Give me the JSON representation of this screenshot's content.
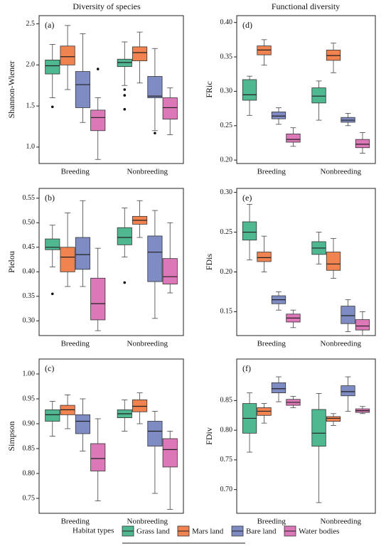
{
  "headers": [
    "Diversity of species",
    "Functional diversity"
  ],
  "legend": {
    "title": "Habitat types",
    "items": [
      {
        "name": "Grass land",
        "color": "#4fb891"
      },
      {
        "name": "Mars land",
        "color": "#f0834f"
      },
      {
        "name": "Bare land",
        "color": "#7f8cc4"
      },
      {
        "name": "Water bodies",
        "color": "#dc77b8"
      }
    ]
  },
  "chart_data": [
    {
      "type": "box",
      "label": "(a)",
      "ylabel": "Shannon-Wiener",
      "categories": [
        "Breeding",
        "Nonbreeding"
      ],
      "ylim": [
        0.8,
        2.6
      ],
      "yticks": [
        {
          "value": 1.0,
          "label": "1.0"
        },
        1.5,
        {
          "value": 2.0,
          "label": "2.0"
        },
        2.5
      ],
      "series": [
        {
          "values": [
            {
              "low": 1.6,
              "q1": 1.89,
              "median": 1.99,
              "q3": 2.06,
              "high": 2.25,
              "outliers": [
                1.49
              ]
            },
            {
              "low": 1.75,
              "q1": 1.98,
              "median": 2.03,
              "q3": 2.07,
              "high": 2.28,
              "outliers": [
                1.7,
                1.63,
                1.46
              ]
            }
          ]
        },
        {
          "values": [
            {
              "low": 1.7,
              "q1": 2.0,
              "median": 2.1,
              "q3": 2.23,
              "high": 2.48,
              "outliers": []
            },
            {
              "low": 1.78,
              "q1": 2.05,
              "median": 2.15,
              "q3": 2.22,
              "high": 2.4,
              "outliers": []
            }
          ]
        },
        {
          "values": [
            {
              "low": 1.3,
              "q1": 1.48,
              "median": 1.76,
              "q3": 1.92,
              "high": 2.38,
              "outliers": []
            },
            {
              "low": 1.2,
              "q1": 1.6,
              "median": 1.62,
              "q3": 1.86,
              "high": 2.2,
              "outliers": [
                1.17
              ]
            }
          ]
        },
        {
          "values": [
            {
              "low": 0.85,
              "q1": 1.2,
              "median": 1.36,
              "q3": 1.45,
              "high": 1.6,
              "outliers": [
                1.95
              ]
            },
            {
              "low": 1.15,
              "q1": 1.34,
              "median": 1.48,
              "q3": 1.6,
              "high": 1.72,
              "outliers": []
            }
          ]
        }
      ]
    },
    {
      "type": "box",
      "label": "(d)",
      "ylabel": "FRic",
      "categories": [
        "Breeding",
        "Nonbreeding"
      ],
      "ylim": [
        0.195,
        0.41
      ],
      "yticks": [
        {
          "value": 0.2,
          "label": "0.20"
        },
        0.25,
        {
          "value": 0.3,
          "label": "0.30"
        },
        0.35,
        {
          "value": 0.4,
          "label": "0.40"
        }
      ],
      "series": [
        {
          "values": [
            {
              "low": 0.265,
              "q1": 0.287,
              "median": 0.295,
              "q3": 0.317,
              "high": 0.322,
              "outliers": []
            },
            {
              "low": 0.258,
              "q1": 0.283,
              "median": 0.293,
              "q3": 0.305,
              "high": 0.315,
              "outliers": []
            }
          ]
        },
        {
          "values": [
            {
              "low": 0.338,
              "q1": 0.353,
              "median": 0.36,
              "q3": 0.366,
              "high": 0.375,
              "outliers": []
            },
            {
              "low": 0.327,
              "q1": 0.345,
              "median": 0.352,
              "q3": 0.36,
              "high": 0.37,
              "outliers": []
            }
          ]
        },
        {
          "values": [
            {
              "low": 0.252,
              "q1": 0.26,
              "median": 0.264,
              "q3": 0.27,
              "high": 0.276,
              "outliers": []
            },
            {
              "low": 0.25,
              "q1": 0.255,
              "median": 0.258,
              "q3": 0.262,
              "high": 0.268,
              "outliers": []
            }
          ]
        },
        {
          "values": [
            {
              "low": 0.22,
              "q1": 0.226,
              "median": 0.23,
              "q3": 0.238,
              "high": 0.247,
              "outliers": []
            },
            {
              "low": 0.21,
              "q1": 0.218,
              "median": 0.223,
              "q3": 0.23,
              "high": 0.24,
              "outliers": []
            }
          ]
        }
      ]
    },
    {
      "type": "box",
      "label": "(b)",
      "ylabel": "Pielou",
      "categories": [
        "Breeding",
        "Nonbreeding"
      ],
      "ylim": [
        0.27,
        0.57
      ],
      "yticks": [
        {
          "value": 0.3,
          "label": "0.30"
        },
        0.35,
        {
          "value": 0.4,
          "label": "0.40"
        },
        0.45,
        {
          "value": 0.5,
          "label": "0.50"
        },
        0.55
      ],
      "series": [
        {
          "values": [
            {
              "low": 0.41,
              "q1": 0.445,
              "median": 0.45,
              "q3": 0.467,
              "high": 0.495,
              "outliers": [
                0.355
              ]
            },
            {
              "low": 0.43,
              "q1": 0.455,
              "median": 0.47,
              "q3": 0.49,
              "high": 0.53,
              "outliers": [
                0.378
              ]
            }
          ]
        },
        {
          "values": [
            {
              "low": 0.37,
              "q1": 0.4,
              "median": 0.43,
              "q3": 0.45,
              "high": 0.52,
              "outliers": []
            },
            {
              "low": 0.47,
              "q1": 0.497,
              "median": 0.505,
              "q3": 0.513,
              "high": 0.545,
              "outliers": []
            }
          ]
        },
        {
          "values": [
            {
              "low": 0.37,
              "q1": 0.405,
              "median": 0.435,
              "q3": 0.47,
              "high": 0.545,
              "outliers": []
            },
            {
              "low": 0.305,
              "q1": 0.38,
              "median": 0.44,
              "q3": 0.473,
              "high": 0.525,
              "outliers": []
            }
          ]
        },
        {
          "values": [
            {
              "low": 0.28,
              "q1": 0.302,
              "median": 0.335,
              "q3": 0.387,
              "high": 0.448,
              "outliers": []
            },
            {
              "low": 0.357,
              "q1": 0.375,
              "median": 0.39,
              "q3": 0.427,
              "high": 0.5,
              "outliers": []
            }
          ]
        }
      ]
    },
    {
      "type": "box",
      "label": "(e)",
      "ylabel": "FDis",
      "categories": [
        "Breeding",
        "Nonbreeding"
      ],
      "ylim": [
        0.12,
        0.305
      ],
      "yticks": [
        0.15,
        {
          "value": 0.2,
          "label": "0.20"
        },
        0.25,
        {
          "value": 0.3,
          "label": "0.30"
        }
      ],
      "series": [
        {
          "values": [
            {
              "low": 0.215,
              "q1": 0.24,
              "median": 0.25,
              "q3": 0.263,
              "high": 0.285,
              "outliers": []
            },
            {
              "low": 0.21,
              "q1": 0.222,
              "median": 0.23,
              "q3": 0.238,
              "high": 0.25,
              "outliers": []
            }
          ]
        },
        {
          "values": [
            {
              "low": 0.2,
              "q1": 0.213,
              "median": 0.218,
              "q3": 0.225,
              "high": 0.245,
              "outliers": []
            },
            {
              "low": 0.192,
              "q1": 0.202,
              "median": 0.21,
              "q3": 0.225,
              "high": 0.242,
              "outliers": []
            }
          ]
        },
        {
          "values": [
            {
              "low": 0.152,
              "q1": 0.16,
              "median": 0.165,
              "q3": 0.17,
              "high": 0.175,
              "outliers": []
            },
            {
              "low": 0.125,
              "q1": 0.135,
              "median": 0.145,
              "q3": 0.157,
              "high": 0.165,
              "outliers": []
            }
          ]
        },
        {
          "values": [
            {
              "low": 0.13,
              "q1": 0.137,
              "median": 0.142,
              "q3": 0.147,
              "high": 0.152,
              "outliers": []
            },
            {
              "low": 0.12,
              "q1": 0.127,
              "median": 0.132,
              "q3": 0.14,
              "high": 0.15,
              "outliers": []
            }
          ]
        }
      ]
    },
    {
      "type": "box",
      "label": "(c)",
      "ylabel": "Simpson",
      "categories": [
        "Breeding",
        "Nonbreeding"
      ],
      "ylim": [
        0.72,
        1.03
      ],
      "yticks": [
        0.75,
        {
          "value": 0.8,
          "label": "0.80"
        },
        0.85,
        {
          "value": 0.9,
          "label": "0.90"
        },
        0.95,
        {
          "value": 1.0,
          "label": "1.00"
        }
      ],
      "series": [
        {
          "values": [
            {
              "low": 0.875,
              "q1": 0.905,
              "median": 0.918,
              "q3": 0.928,
              "high": 0.945,
              "outliers": []
            },
            {
              "low": 0.885,
              "q1": 0.912,
              "median": 0.92,
              "q3": 0.928,
              "high": 0.948,
              "outliers": []
            }
          ]
        },
        {
          "values": [
            {
              "low": 0.89,
              "q1": 0.918,
              "median": 0.928,
              "q3": 0.937,
              "high": 0.958,
              "outliers": []
            },
            {
              "low": 0.9,
              "q1": 0.924,
              "median": 0.935,
              "q3": 0.948,
              "high": 0.962,
              "outliers": []
            }
          ]
        },
        {
          "values": [
            {
              "low": 0.845,
              "q1": 0.88,
              "median": 0.905,
              "q3": 0.918,
              "high": 0.95,
              "outliers": []
            },
            {
              "low": 0.76,
              "q1": 0.855,
              "median": 0.885,
              "q3": 0.905,
              "high": 0.925,
              "outliers": []
            }
          ]
        },
        {
          "values": [
            {
              "low": 0.745,
              "q1": 0.805,
              "median": 0.83,
              "q3": 0.86,
              "high": 0.91,
              "outliers": []
            },
            {
              "low": 0.728,
              "q1": 0.813,
              "median": 0.848,
              "q3": 0.87,
              "high": 0.885,
              "outliers": []
            }
          ]
        }
      ]
    },
    {
      "type": "box",
      "label": "(f)",
      "ylabel": "FDiv",
      "categories": [
        "Breeding",
        "Nonbreeding"
      ],
      "ylim": [
        0.66,
        0.92
      ],
      "yticks": [
        {
          "value": 0.7,
          "label": "0.70"
        },
        0.75,
        {
          "value": 0.8,
          "label": "0.80"
        },
        0.85
      ],
      "series": [
        {
          "values": [
            {
              "low": 0.763,
              "q1": 0.795,
              "median": 0.82,
              "q3": 0.845,
              "high": 0.863,
              "outliers": []
            },
            {
              "low": 0.678,
              "q1": 0.773,
              "median": 0.795,
              "q3": 0.835,
              "high": 0.862,
              "outliers": []
            }
          ]
        },
        {
          "values": [
            {
              "low": 0.812,
              "q1": 0.825,
              "median": 0.832,
              "q3": 0.838,
              "high": 0.845,
              "outliers": []
            },
            {
              "low": 0.808,
              "q1": 0.815,
              "median": 0.82,
              "q3": 0.823,
              "high": 0.828,
              "outliers": []
            }
          ]
        },
        {
          "values": [
            {
              "low": 0.848,
              "q1": 0.863,
              "median": 0.87,
              "q3": 0.88,
              "high": 0.89,
              "outliers": []
            },
            {
              "low": 0.832,
              "q1": 0.858,
              "median": 0.865,
              "q3": 0.875,
              "high": 0.89,
              "outliers": []
            }
          ]
        },
        {
          "values": [
            {
              "low": 0.838,
              "q1": 0.842,
              "median": 0.847,
              "q3": 0.852,
              "high": 0.857,
              "outliers": []
            },
            {
              "low": 0.828,
              "q1": 0.83,
              "median": 0.833,
              "q3": 0.836,
              "high": 0.84,
              "outliers": []
            }
          ]
        }
      ]
    }
  ]
}
